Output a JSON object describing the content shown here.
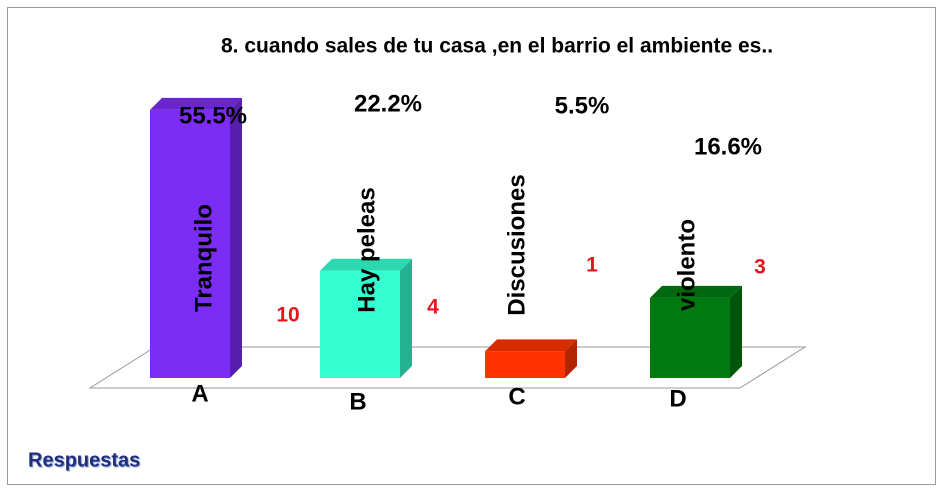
{
  "chart_data": {
    "type": "bar3d",
    "title": "8. cuando sales de  tu casa ,en el barrio el ambiente es..",
    "categories": [
      "A",
      "B",
      "C",
      "D"
    ],
    "bar_labels": [
      "Tranquilo",
      "Hay peleas",
      "Discusiones",
      "violento"
    ],
    "values": [
      55.5,
      22.2,
      5.5,
      16.6
    ],
    "value_labels": [
      "55.5%",
      "22.2%",
      "5.5%",
      "16.6%"
    ],
    "counts": [
      10,
      4,
      1,
      3
    ],
    "colors": [
      "#7b2cf5",
      "#33ffd0",
      "#ff3300",
      "#007a10"
    ],
    "x_label": "Respuestas"
  }
}
